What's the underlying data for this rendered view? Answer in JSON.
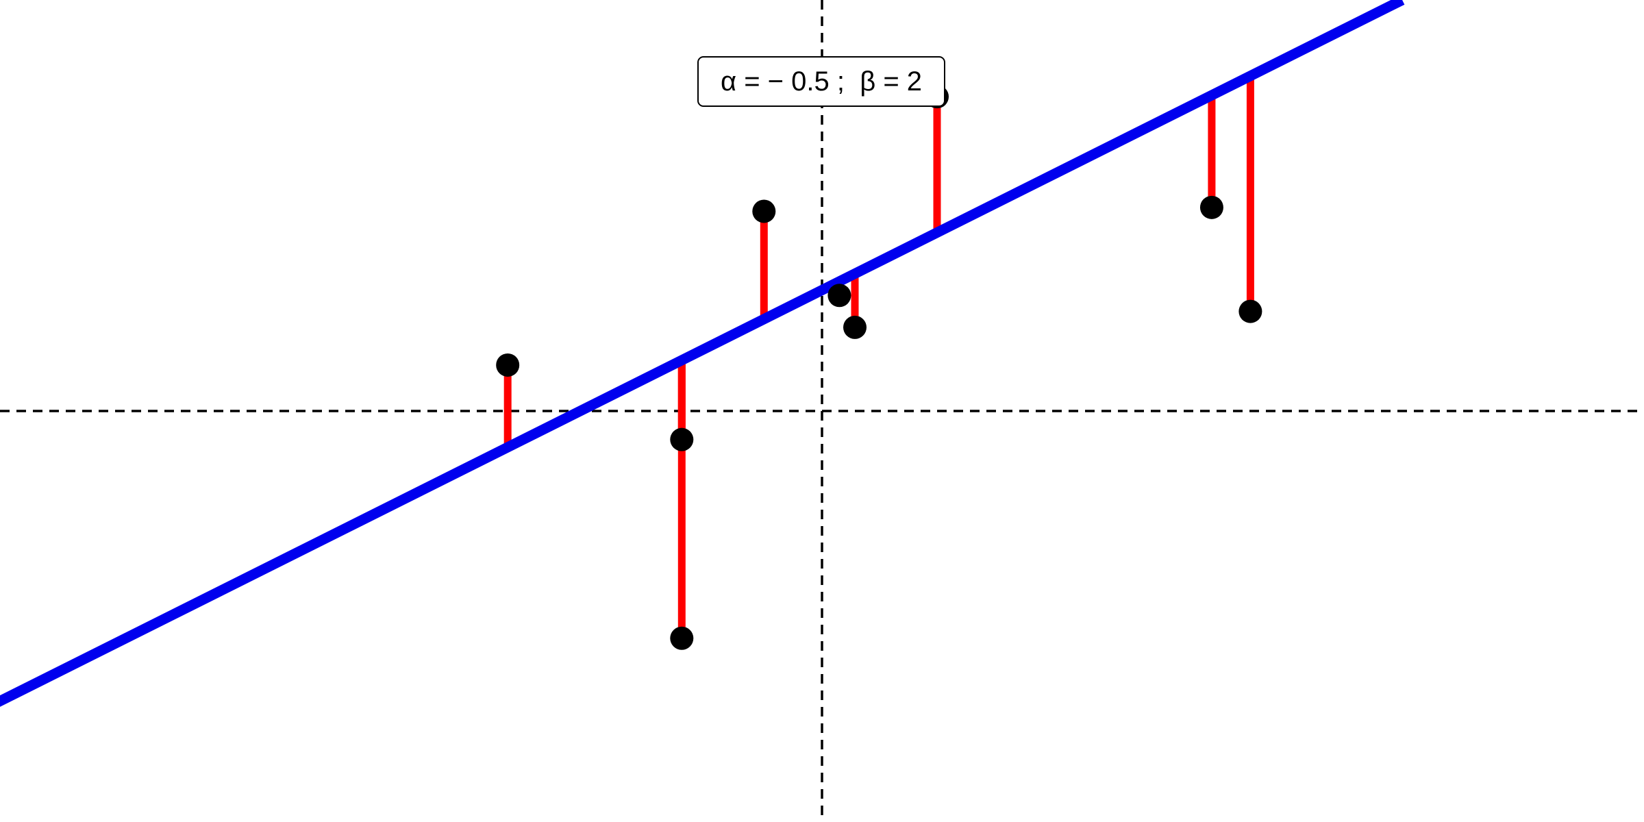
{
  "chart_data": {
    "type": "scatter",
    "title": "",
    "xlabel": "",
    "ylabel": "",
    "xlim": [
      -1.7,
      1.7
    ],
    "ylim": [
      -0.85,
      0.85
    ],
    "grid": false,
    "reference_lines": {
      "vertical_x": 0,
      "horizontal_y": 0,
      "style": "dashed",
      "color": "#000000"
    },
    "annotation": "α = − 0.5 ;  β = 2",
    "fit_line": {
      "alpha": -0.5,
      "beta": 2,
      "equation": "x = -0.5 + 2y",
      "color": "#0000ee"
    },
    "residual_color": "#ff0000",
    "point_color": "#000000",
    "points": [
      {
        "x": -0.65,
        "y": 0.095
      },
      {
        "x": -0.29,
        "y": -0.47
      },
      {
        "x": -0.29,
        "y": -0.059
      },
      {
        "x": -0.12,
        "y": 0.413
      },
      {
        "x": 0.036,
        "y": 0.239
      },
      {
        "x": 0.068,
        "y": 0.173
      },
      {
        "x": 0.238,
        "y": 0.65
      },
      {
        "x": 0.806,
        "y": 0.421
      },
      {
        "x": 0.886,
        "y": 0.206
      }
    ]
  }
}
